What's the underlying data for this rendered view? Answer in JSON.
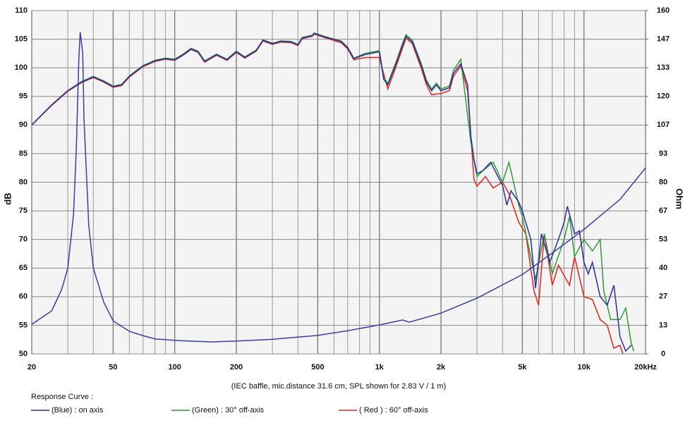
{
  "chart_data": {
    "type": "line",
    "ylabel": "dB",
    "y2label": "Ohm",
    "caption": "(IEC baffle, mic.distance 31.6 cm, SPL shown for 2.83 V / 1 m)",
    "legend_title": "Response Curve :",
    "xscale": "log",
    "xlim": [
      20,
      20000
    ],
    "xticks": [
      20,
      50,
      100,
      200,
      500,
      {
        "value": 1000,
        "label": "1k"
      },
      {
        "value": 2000,
        "label": "2k"
      },
      {
        "value": 5000,
        "label": "5k"
      },
      {
        "value": 10000,
        "label": "10k"
      },
      {
        "value": 20000,
        "label": "20kHz"
      }
    ],
    "xgrid": [
      30,
      40,
      60,
      70,
      80,
      90,
      300,
      400,
      600,
      700,
      800,
      900,
      3000,
      4000,
      6000,
      7000,
      8000,
      9000
    ],
    "ylim": [
      50,
      110
    ],
    "yticks": [
      50,
      55,
      60,
      65,
      70,
      75,
      80,
      85,
      90,
      95,
      100,
      105,
      110
    ],
    "y2lim": [
      0,
      160
    ],
    "y2ticks": [
      0,
      {
        "value": 13.33,
        "label": "13"
      },
      {
        "value": 26.67,
        "label": "27"
      },
      40,
      {
        "value": 53.33,
        "label": "53"
      },
      {
        "value": 66.67,
        "label": "67"
      },
      80,
      {
        "value": 93.33,
        "label": "93"
      },
      {
        "value": 106.67,
        "label": "107"
      },
      120,
      {
        "value": 133.33,
        "label": "133"
      },
      {
        "value": 146.67,
        "label": "147"
      },
      160
    ],
    "grid": true,
    "series": [
      {
        "name": "(Blue)  : on axis",
        "color": "#2b2f9c",
        "x": [
          20,
          25,
          30,
          35,
          40,
          45,
          50,
          55,
          60,
          70,
          80,
          90,
          100,
          110,
          120,
          130,
          140,
          160,
          180,
          200,
          220,
          250,
          270,
          300,
          330,
          370,
          400,
          420,
          470,
          480,
          550,
          650,
          700,
          750,
          850,
          1000,
          1050,
          1100,
          1200,
          1300,
          1350,
          1450,
          1600,
          1700,
          1800,
          1900,
          2000,
          2200,
          2300,
          2500,
          2700,
          2800,
          2900,
          3000,
          3200,
          3500,
          3800,
          4000,
          4200,
          4400,
          4800,
          5000,
          5500,
          5800,
          6200,
          6800,
          7500,
          8000,
          8300,
          9000,
          9500,
          10000,
          10500,
          11000,
          12000,
          13000,
          14000,
          15000,
          16000,
          17000
        ],
        "values": [
          90,
          93.5,
          96,
          97.5,
          98.4,
          97.6,
          96.7,
          97,
          98.5,
          100.3,
          101.2,
          101.6,
          101.4,
          102.3,
          103.3,
          102.8,
          101.1,
          102.3,
          101.4,
          102.8,
          101.8,
          103,
          104.8,
          104.2,
          104.6,
          104.5,
          104,
          105.2,
          105.6,
          106,
          105.3,
          104.6,
          103.5,
          101.6,
          102.3,
          102.8,
          98,
          97,
          100.5,
          104,
          105.5,
          104.5,
          100.5,
          97.5,
          96,
          97,
          96,
          96.5,
          99,
          100.7,
          97,
          88,
          84,
          81.5,
          82,
          83.5,
          81,
          79.5,
          76,
          78.5,
          76.5,
          75,
          70,
          61.5,
          71,
          66,
          70,
          73,
          75.8,
          71,
          71.5,
          66,
          64,
          66,
          60,
          58.5,
          62,
          53,
          50.5,
          51.5
        ]
      },
      {
        "name": "(Green) : 30° off-axis",
        "color": "#2e9b3a",
        "x": [
          20,
          25,
          30,
          35,
          40,
          45,
          50,
          55,
          60,
          70,
          80,
          90,
          100,
          110,
          120,
          130,
          140,
          160,
          180,
          200,
          220,
          250,
          270,
          300,
          330,
          370,
          400,
          420,
          470,
          480,
          550,
          650,
          700,
          750,
          850,
          1000,
          1050,
          1100,
          1200,
          1300,
          1350,
          1450,
          1600,
          1700,
          1800,
          1900,
          2000,
          2200,
          2300,
          2500,
          2800,
          3000,
          3200,
          3600,
          4000,
          4300,
          4800,
          5000,
          5800,
          6400,
          7000,
          8000,
          8500,
          9000,
          10000,
          11000,
          12000,
          12500,
          13500,
          15000,
          16000,
          17000,
          17500
        ],
        "values": [
          90,
          93.5,
          96,
          97.6,
          98.5,
          97.7,
          96.8,
          97.1,
          98.6,
          100.4,
          101.3,
          101.7,
          101.5,
          102.4,
          103.4,
          102.9,
          101.2,
          102.4,
          101.5,
          102.9,
          101.9,
          103.1,
          104.9,
          104.3,
          104.7,
          104.6,
          104.1,
          105.3,
          105.7,
          106.1,
          105.4,
          104.7,
          103.6,
          101.7,
          102.5,
          103,
          98.3,
          97.3,
          100.8,
          104.3,
          105.8,
          104.8,
          100.8,
          97.8,
          96.3,
          97.3,
          96.3,
          96.8,
          99.5,
          101.5,
          87,
          81,
          82,
          83.5,
          80,
          83.5,
          76,
          74,
          63,
          71,
          64,
          70,
          74,
          67,
          70,
          68,
          70,
          61,
          56,
          56,
          58,
          52,
          50.5
        ]
      },
      {
        "name": "( Red ) : 60° off-axis",
        "color": "#e8231b",
        "x": [
          20,
          25,
          30,
          35,
          40,
          45,
          50,
          55,
          60,
          70,
          80,
          90,
          100,
          110,
          120,
          130,
          140,
          160,
          180,
          200,
          220,
          250,
          270,
          300,
          330,
          370,
          400,
          420,
          470,
          480,
          550,
          650,
          700,
          750,
          850,
          1000,
          1100,
          1200,
          1300,
          1350,
          1450,
          1600,
          1700,
          1800,
          2000,
          2200,
          2300,
          2500,
          2700,
          2900,
          3000,
          3300,
          3600,
          4000,
          4300,
          4800,
          5200,
          5700,
          6000,
          6400,
          7000,
          7500,
          8500,
          9000,
          10000,
          11000,
          12000,
          13000,
          14000,
          15000,
          15500
        ],
        "values": [
          90,
          93.4,
          95.9,
          97.4,
          98.3,
          97.5,
          96.6,
          96.9,
          98.4,
          100.2,
          101.1,
          101.5,
          101.3,
          102.2,
          103.2,
          102.7,
          101,
          102.2,
          101.3,
          102.7,
          101.7,
          102.9,
          104.7,
          104.1,
          104.5,
          104.4,
          103.9,
          105.1,
          105.5,
          105.9,
          105.2,
          104.4,
          103.3,
          101.4,
          101.8,
          101.8,
          96.3,
          100,
          103.5,
          105.2,
          104.2,
          100,
          97,
          95.3,
          95.5,
          96,
          98.5,
          100.3,
          96,
          80.5,
          79.3,
          81,
          79,
          80,
          78,
          73,
          71,
          61,
          58.5,
          71,
          62,
          65.5,
          62,
          67,
          60,
          59.5,
          56,
          55,
          51,
          51.5,
          50
        ]
      },
      {
        "name": "Impedance",
        "color": "#3a3fa3",
        "axis": "y2",
        "x": [
          20,
          25,
          28,
          30,
          32,
          33,
          34,
          34.5,
          35.5,
          36,
          38,
          40,
          45,
          50,
          60,
          70,
          80,
          100,
          150,
          200,
          300,
          500,
          700,
          1000,
          1300,
          1400,
          2000,
          3000,
          5000,
          7000,
          10000,
          15000,
          20000
        ],
        "values": [
          13.8,
          20,
          30,
          40,
          65,
          95,
          138,
          150,
          140,
          110,
          60,
          40,
          24,
          15.4,
          10.5,
          8.5,
          7,
          6.3,
          5.6,
          6,
          6.8,
          8.6,
          10.8,
          13.5,
          15.8,
          14.8,
          19,
          26,
          37,
          47,
          58,
          72,
          86.7
        ]
      }
    ]
  }
}
